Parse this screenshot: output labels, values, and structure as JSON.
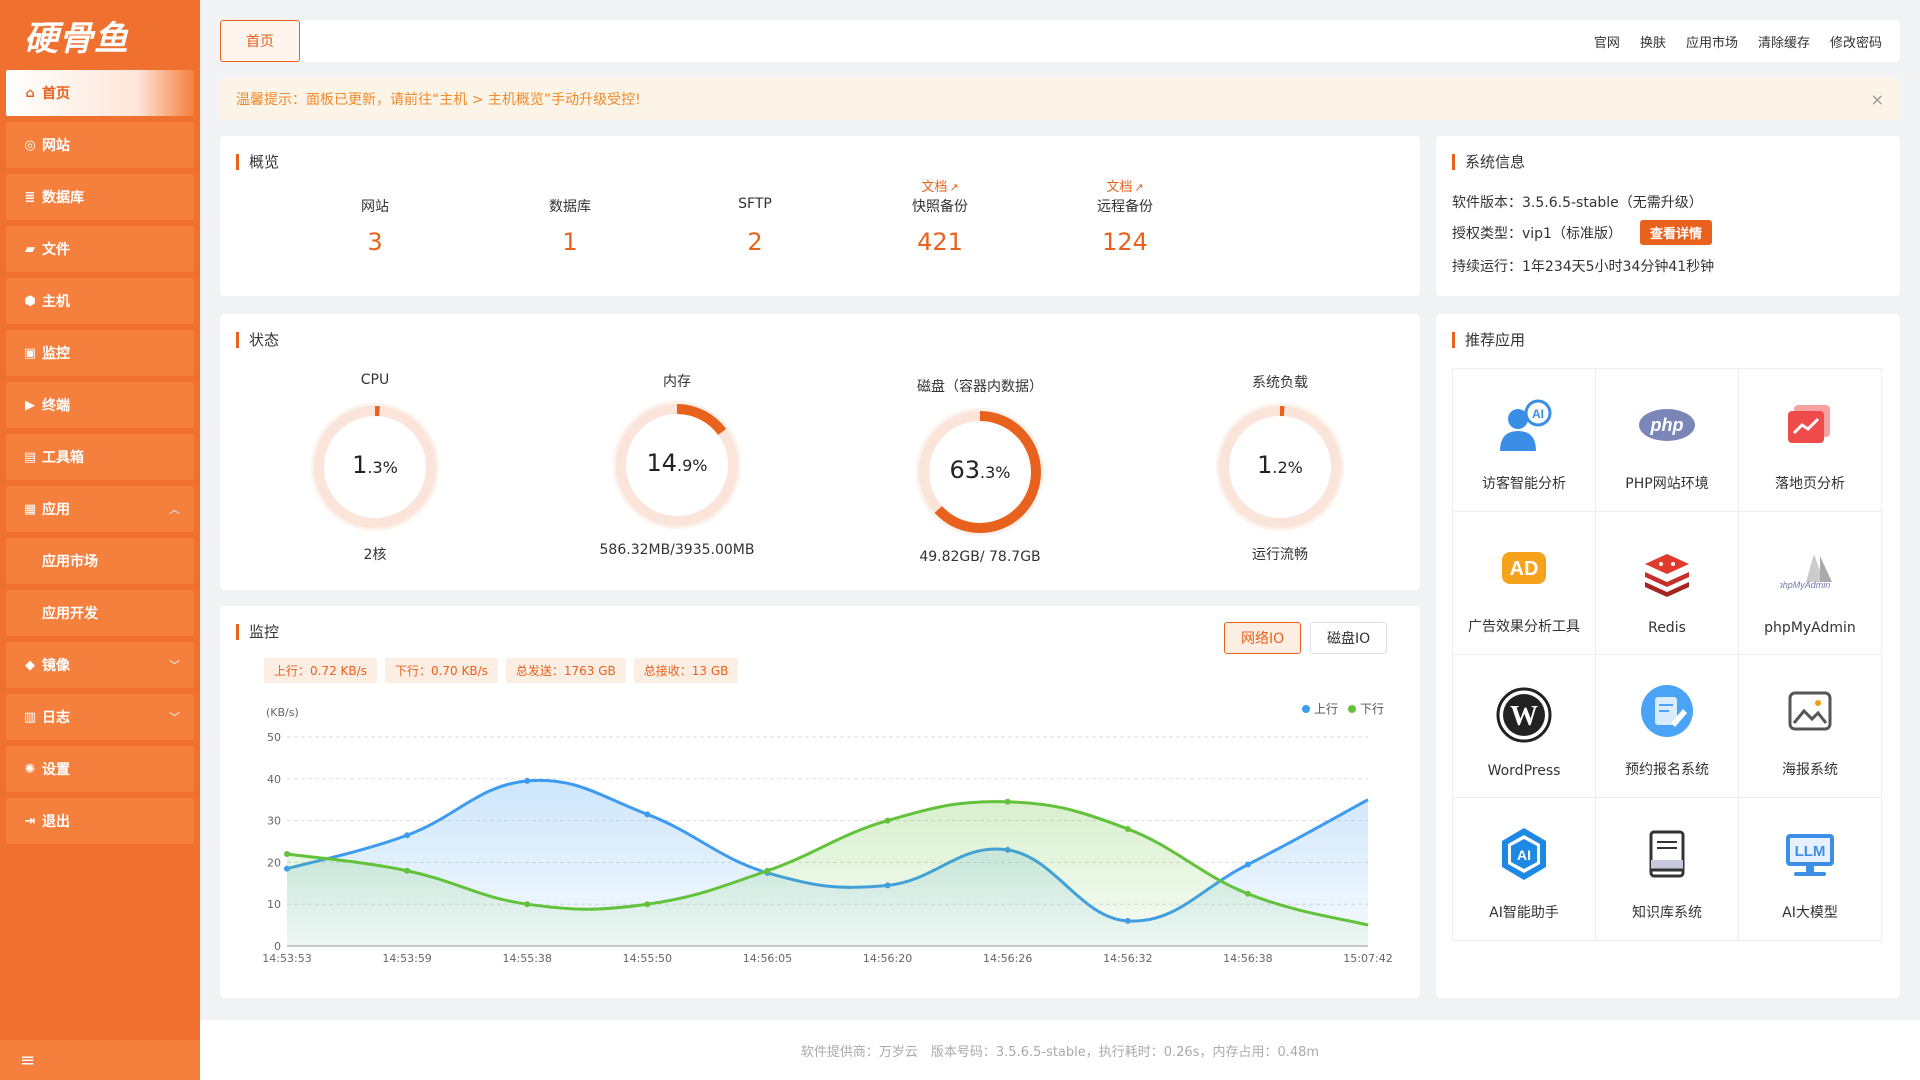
{
  "logo": "硬骨鱼",
  "sidebar": {
    "items": [
      {
        "label": "首页",
        "icon": "home-icon",
        "active": true
      },
      {
        "label": "网站",
        "icon": "globe-icon"
      },
      {
        "label": "数据库",
        "icon": "database-icon"
      },
      {
        "label": "文件",
        "icon": "folder-icon"
      },
      {
        "label": "主机",
        "icon": "host-icon"
      },
      {
        "label": "监控",
        "icon": "monitor-icon"
      },
      {
        "label": "终端",
        "icon": "terminal-icon"
      },
      {
        "label": "工具箱",
        "icon": "toolbox-icon"
      },
      {
        "label": "应用",
        "icon": "apps-icon",
        "expanded": true
      },
      {
        "label": "应用市场",
        "sub": true
      },
      {
        "label": "应用开发",
        "sub": true
      },
      {
        "label": "镜像",
        "icon": "image-icon"
      },
      {
        "label": "日志",
        "icon": "log-icon"
      },
      {
        "label": "设置",
        "icon": "gear-icon"
      },
      {
        "label": "退出",
        "icon": "logout-icon"
      }
    ],
    "collapse_icon": "≡"
  },
  "topbar": {
    "tab": "首页",
    "links": [
      "官网",
      "换肤",
      "应用市场",
      "清除缓存",
      "修改密码"
    ]
  },
  "notice": "温馨提示：面板已更新，请前往“主机 > 主机概览”手动升级受控!",
  "notice_close": "×",
  "overview": {
    "title": "概览",
    "doc_label": "文档",
    "items": [
      {
        "label": "网站",
        "value": "3",
        "doc": false
      },
      {
        "label": "数据库",
        "value": "1",
        "doc": false
      },
      {
        "label": "SFTP",
        "value": "2",
        "doc": false
      },
      {
        "label": "快照备份",
        "value": "421",
        "doc": true
      },
      {
        "label": "远程备份",
        "value": "124",
        "doc": true
      }
    ]
  },
  "sysinfo": {
    "title": "系统信息",
    "version": "软件版本：3.5.6.5-stable（无需升级）",
    "license": "授权类型：vip1（标准版）",
    "detail_btn": "查看详情",
    "uptime": "持续运行：1年234天5小时34分钟41秒钟"
  },
  "status": {
    "title": "状态",
    "gauges": [
      {
        "title": "CPU",
        "int": "1",
        "dec": ".3",
        "unit": "%",
        "percent": 1.3,
        "sub": "2核"
      },
      {
        "title": "内存",
        "int": "14",
        "dec": ".9",
        "unit": "%",
        "percent": 14.9,
        "sub": "586.32MB/3935.00MB"
      },
      {
        "title": "磁盘（容器内数据）",
        "int": "63",
        "dec": ".3",
        "unit": "%",
        "percent": 63.3,
        "sub": "49.82GB/ 78.7GB"
      },
      {
        "title": "系统负载",
        "int": "1",
        "dec": ".2",
        "unit": "%",
        "percent": 1.2,
        "sub": "运行流畅"
      }
    ]
  },
  "monitor": {
    "title": "监控",
    "pills": [
      "上行：0.72 KB/s",
      "下行：0.70 KB/s",
      "总发送：1763 GB",
      "总接收：13 GB"
    ],
    "tabs": [
      {
        "label": "网络IO",
        "active": true
      },
      {
        "label": "磁盘IO"
      }
    ]
  },
  "chart_data": {
    "type": "area",
    "ylabel": "(KB/s)",
    "ylim": [
      0,
      50
    ],
    "yticks": [
      0,
      10,
      20,
      30,
      40,
      50
    ],
    "x": [
      "14:53:53",
      "14:53:59",
      "14:55:38",
      "14:55:50",
      "14:56:05",
      "14:56:20",
      "14:56:26",
      "14:56:32",
      "14:56:38",
      "15:07:42"
    ],
    "series": [
      {
        "name": "上行",
        "color": "#3d9bf0",
        "values": [
          18.5,
          26.5,
          39.5,
          31.5,
          17.5,
          14.5,
          23,
          6,
          19.5,
          35
        ]
      },
      {
        "name": "下行",
        "color": "#63c23b",
        "values": [
          22,
          18,
          10,
          10,
          18,
          30,
          34.5,
          28,
          12.5,
          5
        ]
      }
    ],
    "legend": "top-right",
    "grid": true
  },
  "apps": {
    "title": "推荐应用",
    "items": [
      {
        "label": "访客智能分析",
        "icon": "visitor-ai-icon"
      },
      {
        "label": "PHP网站环境",
        "icon": "php-icon"
      },
      {
        "label": "落地页分析",
        "icon": "landing-page-icon"
      },
      {
        "label": "广告效果分析工具",
        "icon": "ad-icon"
      },
      {
        "label": "Redis",
        "icon": "redis-icon"
      },
      {
        "label": "phpMyAdmin",
        "icon": "phpmyadmin-icon"
      },
      {
        "label": "WordPress",
        "icon": "wordpress-icon"
      },
      {
        "label": "预约报名系统",
        "icon": "booking-icon"
      },
      {
        "label": "海报系统",
        "icon": "poster-icon"
      },
      {
        "label": "AI智能助手",
        "icon": "ai-assistant-icon"
      },
      {
        "label": "知识库系统",
        "icon": "knowledge-base-icon"
      },
      {
        "label": "AI大模型",
        "icon": "llm-icon"
      }
    ]
  },
  "footer": "软件提供商：万岁云　版本号码：3.5.6.5-stable，执行耗时：0.26s，内存占用：0.48m"
}
